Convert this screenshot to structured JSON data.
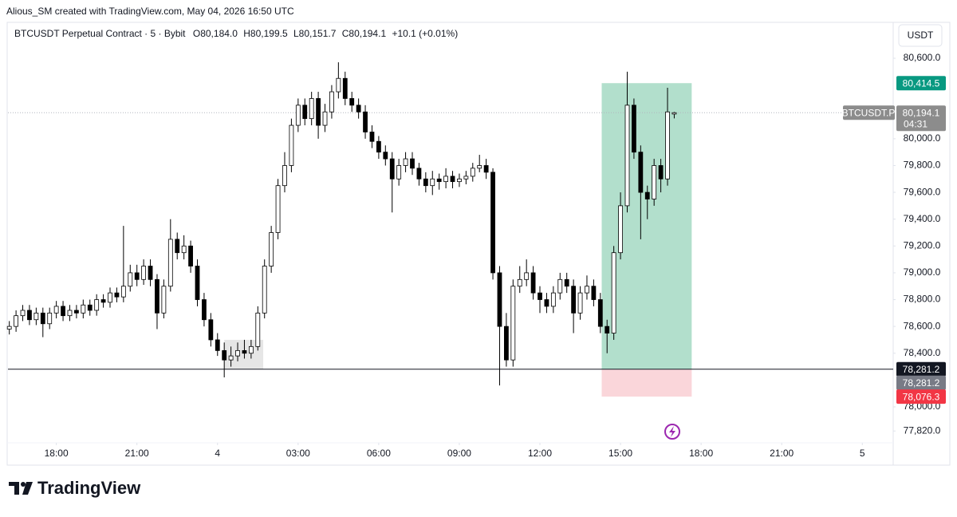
{
  "header": {
    "attribution": "Alious_SM created with TradingView.com, May 04, 2026 16:50 UTC"
  },
  "footer": {
    "brand": "TradingView"
  },
  "chart_data": {
    "type": "candlestick",
    "title": "BTCUSDT Perpetual Contract · 5 · Bybit",
    "ohlc_legend": [
      "O80,184.0",
      "H80,199.5",
      "L80,151.7",
      "C80,194.1",
      "+10.1 (+0.01%)"
    ],
    "currency": "USDT",
    "up_color": "#ffffff",
    "down_color": "#000000",
    "x": [
      16.25,
      16.5,
      16.75,
      17,
      17.25,
      17.5,
      17.75,
      18,
      18.25,
      18.5,
      18.75,
      19,
      19.25,
      19.5,
      19.75,
      20,
      20.25,
      20.5,
      20.75,
      21,
      21.25,
      21.5,
      21.75,
      22,
      22.25,
      22.5,
      22.75,
      23,
      23.25,
      23.5,
      23.75,
      24,
      24.25,
      24.5,
      24.75,
      25,
      25.25,
      25.5,
      25.75,
      26,
      26.25,
      26.5,
      26.75,
      27,
      27.25,
      27.5,
      27.75,
      28,
      28.25,
      28.5,
      28.75,
      29,
      29.25,
      29.5,
      29.75,
      30,
      30.25,
      30.5,
      30.75,
      31,
      31.25,
      31.5,
      31.75,
      32,
      32.25,
      32.5,
      32.75,
      33,
      33.25,
      33.5,
      33.75,
      34,
      34.25,
      34.5,
      34.75,
      35,
      35.25,
      35.5,
      35.75,
      36,
      36.25,
      36.5,
      36.75,
      37,
      37.25,
      37.5,
      37.75,
      38,
      38.25,
      38.5,
      38.75,
      39,
      39.25,
      39.5,
      39.75,
      40,
      40.25,
      40.5,
      40.75,
      41
    ],
    "open": [
      78580,
      78600,
      78680,
      78720,
      78650,
      78700,
      78620,
      78700,
      78750,
      78680,
      78720,
      78700,
      78760,
      78720,
      78800,
      78780,
      78850,
      78820,
      78900,
      79000,
      78950,
      79050,
      78950,
      78700,
      78900,
      79250,
      79150,
      79200,
      79050,
      78800,
      78650,
      78500,
      78420,
      78350,
      78380,
      78420,
      78400,
      78450,
      78700,
      79050,
      79300,
      79650,
      79800,
      80100,
      80250,
      80150,
      80300,
      80100,
      80200,
      80350,
      80450,
      80300,
      80250,
      80200,
      80050,
      79980,
      79900,
      79850,
      79700,
      79800,
      79850,
      79780,
      79700,
      79650,
      79700,
      79680,
      79720,
      79680,
      79700,
      79720,
      79780,
      79800,
      79750,
      79000,
      78600,
      78350,
      78900,
      78950,
      79000,
      78850,
      78800,
      78750,
      78850,
      78950,
      78900,
      78700,
      78850,
      78900,
      78800,
      78600,
      78550,
      79150,
      79500,
      80250,
      79900,
      79600,
      79550,
      79800,
      79700,
      80184.0
    ],
    "high": [
      78640,
      78720,
      78760,
      78760,
      78740,
      78740,
      78740,
      78790,
      78790,
      78760,
      78760,
      78800,
      78800,
      78840,
      78840,
      78890,
      78890,
      79350,
      79060,
      79060,
      79100,
      79100,
      78990,
      78950,
      79400,
      79300,
      79280,
      79240,
      79100,
      78850,
      78700,
      78550,
      78480,
      78450,
      78480,
      78500,
      78500,
      78750,
      79100,
      79350,
      79700,
      79900,
      80150,
      80300,
      80300,
      80350,
      80350,
      80260,
      80400,
      80570,
      80500,
      80350,
      80300,
      80250,
      80100,
      80020,
      79950,
      79900,
      79850,
      79900,
      79900,
      79820,
      79750,
      79760,
      79740,
      79780,
      79760,
      79740,
      79760,
      79820,
      79880,
      79850,
      79780,
      79050,
      78700,
      78950,
      79050,
      79100,
      79050,
      78900,
      78850,
      78900,
      79000,
      79000,
      78950,
      78900,
      78980,
      78950,
      78850,
      78650,
      79200,
      79600,
      80500,
      80300,
      79950,
      79650,
      79850,
      79850,
      80380,
      80199.5
    ],
    "low": [
      78540,
      78560,
      78640,
      78610,
      78610,
      78520,
      78580,
      78660,
      78640,
      78640,
      78660,
      78660,
      78680,
      78680,
      78740,
      78740,
      78780,
      78780,
      78860,
      78900,
      78910,
      78900,
      78580,
      78660,
      78860,
      79100,
      79100,
      79000,
      78750,
      78600,
      78450,
      78380,
      78220,
      78300,
      78340,
      78360,
      78360,
      78420,
      78660,
      79000,
      79250,
      79600,
      79750,
      80050,
      80100,
      80100,
      80000,
      80050,
      80150,
      80300,
      80250,
      80200,
      80150,
      80000,
      79930,
      79850,
      79800,
      79450,
      79650,
      79750,
      79730,
      79650,
      79600,
      79580,
      79620,
      79630,
      79630,
      79640,
      79660,
      79680,
      79750,
      79700,
      78950,
      78160,
      78300,
      78300,
      78850,
      78900,
      78800,
      78700,
      78700,
      78700,
      78800,
      78850,
      78550,
      78650,
      78800,
      78750,
      78550,
      78400,
      78500,
      79100,
      79450,
      79850,
      79250,
      79400,
      79500,
      79600,
      79650,
      80151.7
    ],
    "close": [
      78600,
      78680,
      78720,
      78650,
      78700,
      78620,
      78700,
      78750,
      78680,
      78720,
      78700,
      78760,
      78720,
      78800,
      78780,
      78850,
      78820,
      78900,
      79000,
      78950,
      79050,
      78950,
      78700,
      78900,
      79250,
      79150,
      79200,
      79050,
      78800,
      78650,
      78500,
      78420,
      78350,
      78380,
      78420,
      78400,
      78450,
      78700,
      79050,
      79300,
      79650,
      79800,
      80100,
      80250,
      80150,
      80300,
      80100,
      80200,
      80350,
      80450,
      80300,
      80250,
      80200,
      80050,
      79980,
      79900,
      79850,
      79700,
      79800,
      79850,
      79780,
      79700,
      79650,
      79700,
      79680,
      79720,
      79680,
      79700,
      79720,
      79780,
      79800,
      79750,
      79000,
      78600,
      78350,
      78900,
      78950,
      79000,
      78850,
      78800,
      78750,
      78850,
      78950,
      78900,
      78700,
      78850,
      78900,
      78800,
      78600,
      78550,
      79150,
      79500,
      80250,
      79900,
      79600,
      79550,
      79800,
      79700,
      80200,
      80194.1
    ],
    "xlim": [
      16.2,
      49.15
    ],
    "ylim": [
      77732,
      80868
    ],
    "xticks": [
      {
        "value": 18,
        "label": "18:00"
      },
      {
        "value": 21,
        "label": "21:00"
      },
      {
        "value": 24,
        "label": "4"
      },
      {
        "value": 27,
        "label": "03:00"
      },
      {
        "value": 30,
        "label": "06:00"
      },
      {
        "value": 33,
        "label": "09:00"
      },
      {
        "value": 36,
        "label": "12:00"
      },
      {
        "value": 39,
        "label": "15:00"
      },
      {
        "value": 42,
        "label": "18:00"
      },
      {
        "value": 45,
        "label": "21:00"
      },
      {
        "value": 48,
        "label": "5"
      }
    ],
    "yticks": [
      {
        "value": 77820,
        "label": "77,820.0"
      },
      {
        "value": 78000,
        "label": "78,000.0"
      },
      {
        "value": 78400,
        "label": "78,400.0"
      },
      {
        "value": 78600,
        "label": "78,600.0"
      },
      {
        "value": 78800,
        "label": "78,800.0"
      },
      {
        "value": 79000,
        "label": "79,000.0"
      },
      {
        "value": 79200,
        "label": "79,200.0"
      },
      {
        "value": 79400,
        "label": "79,400.0"
      },
      {
        "value": 79600,
        "label": "79,600.0"
      },
      {
        "value": 79800,
        "label": "79,800.0"
      },
      {
        "value": 80000,
        "label": "80,000.0"
      },
      {
        "value": 80600,
        "label": "80,600.0"
      }
    ],
    "grid": false,
    "zone": {
      "x": [
        24.25,
        25.7
      ],
      "y": [
        78281.2,
        78500
      ],
      "color": "#e6e6e6"
    },
    "hline": {
      "value": 78281.2,
      "label": "78,281.2",
      "color": "#131722"
    },
    "position": {
      "x": [
        38.3,
        41.65
      ],
      "profit_color": "#b2dfcc",
      "loss_color": "#fad6da",
      "target": {
        "value": 80414.5,
        "label": "80,414.5",
        "color": "#089981"
      },
      "entry": {
        "value": 78281.2,
        "label": "78,281.2",
        "color": "#787b86"
      },
      "stop": {
        "value": 78076.3,
        "label": "78,076.3",
        "color": "#f23645"
      }
    },
    "last_price": {
      "value": 80194.1,
      "label": "80,194.1",
      "symbol": "BTCUSDT.P",
      "countdown": "04:31",
      "color": "#8c8c8c"
    }
  }
}
